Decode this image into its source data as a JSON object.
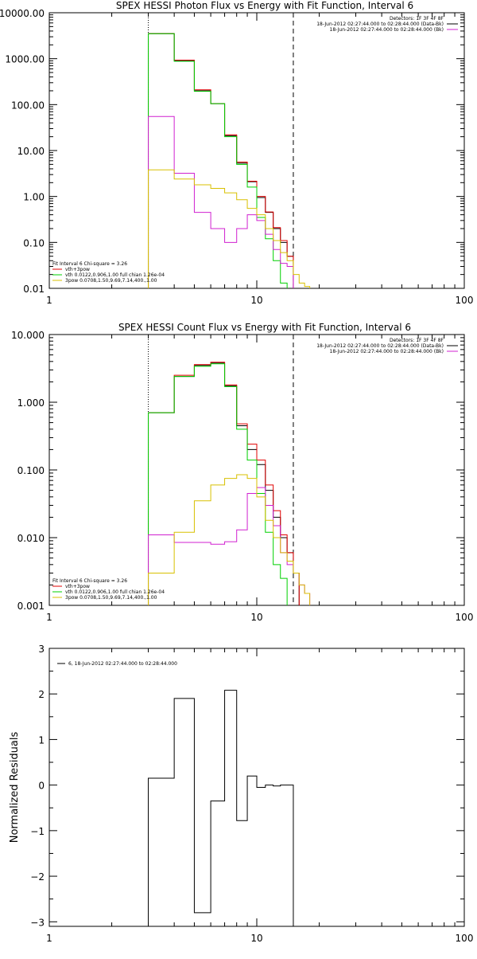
{
  "chart_data": [
    {
      "type": "line",
      "title": "SPEX HESSI Photon Flux vs Energy with Fit Function, Interval 6",
      "xscale": "log",
      "yscale": "log",
      "xlim": [
        1,
        100
      ],
      "ylim": [
        0.01,
        10000
      ],
      "x_ticks": [
        "1",
        "10",
        "100"
      ],
      "y_ticks": [
        "10000.00",
        "1000.00",
        "100.00",
        "10.00",
        "1.00",
        "0.10",
        "0.01"
      ],
      "vlines": [
        {
          "x": 3,
          "style": "dotted"
        },
        {
          "x": 15,
          "style": "dashed"
        }
      ],
      "legend_top": {
        "placement": "top-right",
        "lines": [
          {
            "text": "Detectors: 1F 3F 4F 8F",
            "color": ""
          },
          {
            "text": "18-Jun-2012 02:27:44.000 to 02:28:44.000 (Data-Bk)",
            "color": "#000000"
          },
          {
            "text": "18-Jun-2012 02:27:44.000 to 02:28:44.000 (Bk)",
            "color": "#d020d0"
          }
        ]
      },
      "legend_bottom": {
        "placement": "bottom-left",
        "lines": [
          {
            "text": "Fit Interval 6   Chi-square = 3.26",
            "color": ""
          },
          {
            "text": "vth+3pow",
            "color": "#e00000"
          },
          {
            "text": "vth 0.0122,0.906,1.00  full chian 1.26e-04",
            "color": "#00d000"
          },
          {
            "text": "3pow 0.0708,1.50,9.69,7.14,400.,1.00",
            "color": "#d8c000"
          }
        ]
      },
      "series": [
        {
          "color": "#000000",
          "edges": [
            3,
            4,
            5,
            6,
            7,
            8,
            9,
            10,
            11,
            12,
            13,
            14,
            15
          ],
          "values": [
            3500,
            900,
            200,
            105,
            21,
            5.3,
            2.1,
            0.95,
            0.45,
            0.2,
            0.1,
            0.05
          ]
        },
        {
          "color": "#e00000",
          "edges": [
            3,
            4,
            5,
            6,
            7,
            8,
            9,
            10,
            11,
            12,
            13,
            14,
            15
          ],
          "values": [
            3500,
            930,
            210,
            105,
            22,
            5.6,
            2.15,
            1.0,
            0.46,
            0.21,
            0.11,
            0.05
          ]
        },
        {
          "color": "#00d000",
          "edges": [
            3,
            4,
            5,
            6,
            7,
            8,
            9,
            10,
            11,
            12,
            13,
            14
          ],
          "values": [
            3500,
            880,
            195,
            105,
            20,
            5.0,
            1.6,
            0.35,
            0.12,
            0.04,
            0.013
          ]
        },
        {
          "color": "#d020d0",
          "edges": [
            3,
            4,
            5,
            6,
            7,
            8,
            9,
            10,
            11,
            12,
            13,
            14,
            15
          ],
          "values": [
            55,
            3.2,
            0.45,
            0.2,
            0.1,
            0.2,
            0.4,
            0.3,
            0.15,
            0.07,
            0.035,
            0.03
          ]
        },
        {
          "color": "#d8c000",
          "edges": [
            3,
            4,
            5,
            6,
            7,
            8,
            9,
            10,
            11,
            12,
            13,
            14,
            15,
            16,
            17,
            18
          ],
          "values": [
            3.8,
            2.4,
            1.8,
            1.5,
            1.2,
            0.85,
            0.55,
            0.4,
            0.2,
            0.11,
            0.06,
            0.04,
            0.02,
            0.013,
            0.011
          ]
        }
      ]
    },
    {
      "type": "line",
      "title": "SPEX HESSI Count Flux vs Energy with Fit Function, Interval 6",
      "xscale": "log",
      "yscale": "log",
      "xlim": [
        1,
        100
      ],
      "ylim": [
        0.001,
        10
      ],
      "x_ticks": [
        "1",
        "10",
        "100"
      ],
      "y_ticks": [
        "10.000",
        "1.000",
        "0.100",
        "0.010",
        "0.001"
      ],
      "vlines": [
        {
          "x": 3,
          "style": "dotted"
        },
        {
          "x": 15,
          "style": "dashed"
        }
      ],
      "legend_top": {
        "placement": "top-right",
        "lines": [
          {
            "text": "Detectors: 1F 3F 4F 8F",
            "color": ""
          },
          {
            "text": "18-Jun-2012 02:27:44.000 to 02:28:44.000 (Data-Bk)",
            "color": "#000000"
          },
          {
            "text": "18-Jun-2012 02:27:44.000 to 02:28:44.000 (Bk)",
            "color": "#d020d0"
          }
        ]
      },
      "legend_bottom": {
        "placement": "bottom-left",
        "lines": [
          {
            "text": "Fit Interval 6   Chi-square = 3.26",
            "color": ""
          },
          {
            "text": "vth+3pow",
            "color": "#e00000"
          },
          {
            "text": "vth 0.0122,0.906,1.00  full chian 1.26e-04",
            "color": "#00d000"
          },
          {
            "text": "3pow 0.0708,1.50,9.69,7.14,400.,1.00",
            "color": "#d8c000"
          }
        ]
      },
      "series": [
        {
          "color": "#000000",
          "edges": [
            3,
            4,
            5,
            6,
            7,
            8,
            9,
            10,
            11,
            12,
            13,
            14,
            15,
            16
          ],
          "values": [
            0.7,
            2.4,
            3.5,
            3.8,
            1.75,
            0.45,
            0.2,
            0.12,
            0.05,
            0.02,
            0.01,
            0.006,
            0.003
          ]
        },
        {
          "color": "#e00000",
          "edges": [
            3,
            4,
            5,
            6,
            7,
            8,
            9,
            10,
            11,
            12,
            13,
            14,
            15,
            16
          ],
          "values": [
            0.7,
            2.5,
            3.6,
            3.9,
            1.8,
            0.48,
            0.24,
            0.14,
            0.06,
            0.025,
            0.011,
            0.006,
            0.003
          ]
        },
        {
          "color": "#00d000",
          "edges": [
            3,
            4,
            5,
            6,
            7,
            8,
            9,
            10,
            11,
            12,
            13,
            14
          ],
          "values": [
            0.7,
            2.4,
            3.4,
            3.7,
            1.7,
            0.4,
            0.14,
            0.045,
            0.012,
            0.004,
            0.0025
          ]
        },
        {
          "color": "#d020d0",
          "edges": [
            3,
            4,
            5,
            6,
            7,
            8,
            9,
            10,
            11,
            12,
            13,
            14,
            15,
            16,
            17,
            18
          ],
          "values": [
            0.011,
            0.0085,
            0.0085,
            0.008,
            0.0087,
            0.013,
            0.045,
            0.055,
            0.03,
            0.015,
            0.006,
            0.004,
            0.003,
            0.002,
            0.0015
          ]
        },
        {
          "color": "#d8c000",
          "edges": [
            3,
            4,
            5,
            6,
            7,
            8,
            9,
            10,
            11,
            12,
            13,
            14,
            15,
            16,
            17,
            18
          ],
          "values": [
            0.003,
            0.012,
            0.035,
            0.06,
            0.075,
            0.085,
            0.075,
            0.04,
            0.018,
            0.01,
            0.006,
            0.0045,
            0.003,
            0.002,
            0.0015
          ]
        }
      ]
    },
    {
      "type": "line",
      "title": "",
      "ylabel": "Normalized Residuals",
      "xscale": "log",
      "yscale": "linear",
      "xlim": [
        1,
        100
      ],
      "ylim": [
        -3.1,
        3.0
      ],
      "x_ticks": [
        "1",
        "10",
        "100"
      ],
      "y_ticks": [
        "3",
        "2",
        "1",
        "0",
        "−1",
        "−2",
        "−3"
      ],
      "legend_top": {
        "placement": "top-left",
        "lines": [
          {
            "text": "6, 18-Jun-2012 02:27:44.000 to 02:28:44.000",
            "color": "#000000"
          }
        ]
      },
      "series": [
        {
          "color": "#000000",
          "edges": [
            3,
            4,
            5,
            6,
            7,
            8,
            9,
            10,
            11,
            12,
            13,
            14,
            15
          ],
          "values": [
            0.15,
            1.9,
            -2.8,
            -0.35,
            2.08,
            -0.78,
            0.2,
            -0.05,
            0.0,
            -0.02,
            0.0,
            0.0
          ]
        }
      ]
    }
  ]
}
